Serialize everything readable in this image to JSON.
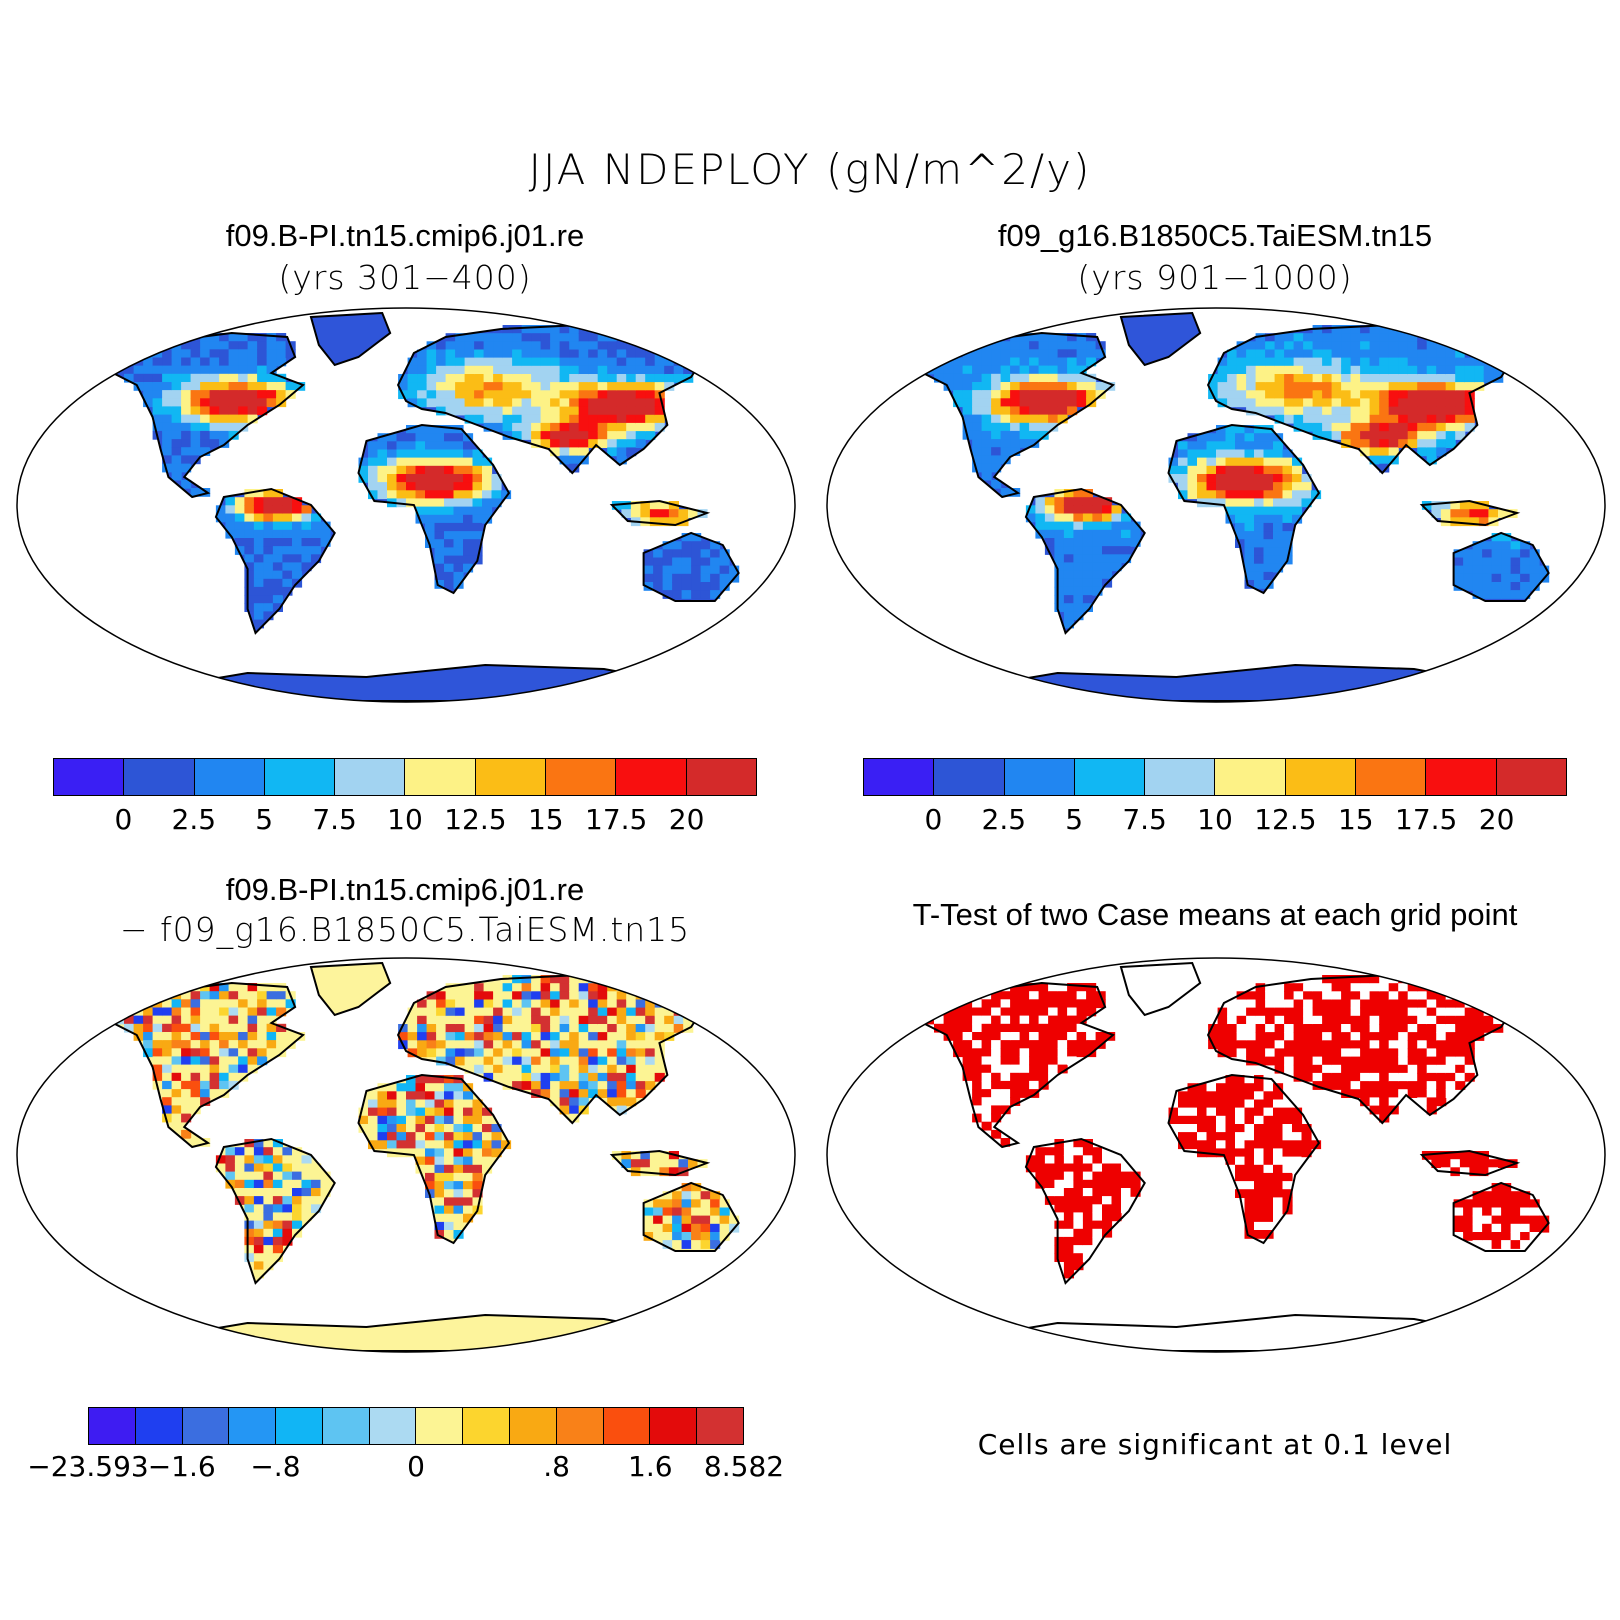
{
  "figure": {
    "title": "JJA NDEPLOY (gN/m^2/y)",
    "colors": {
      "land_low": "#2f55d9",
      "land_zero": "#fdf49c",
      "significant": "#ee0000",
      "map_border": "#000000"
    }
  },
  "panels": {
    "top_left": {
      "case_name": "f09.B-PI.tn15.cmip6.j01.re",
      "years": "(yrs 301−400)",
      "fill_map": "NDEPLOY mean, case 1"
    },
    "top_right": {
      "case_name": "f09_g16.B1850C5.TaiESM.tn15",
      "years": "(yrs 901−1000)",
      "fill_map": "NDEPLOY mean, case 2"
    },
    "bottom_left": {
      "line1": "f09.B-PI.tn15.cmip6.j01.re",
      "line2": "− f09_g16.B1850C5.TaiESM.tn15",
      "fill_map": "difference"
    },
    "bottom_right": {
      "title": "T-Test of two Case means at each grid point",
      "note": "Cells are significant at 0.1 level",
      "fill_map": "significance"
    }
  },
  "colorbars": {
    "mean": {
      "colors": [
        "#3a1ff4",
        "#2d55d6",
        "#2186f1",
        "#11b7f3",
        "#a2d3f1",
        "#fdf286",
        "#fbbd16",
        "#fa7512",
        "#f80f0f",
        "#d42a2a"
      ],
      "labels": [
        "0",
        "2.5",
        "5",
        "7.5",
        "10",
        "12.5",
        "15",
        "17.5",
        "20"
      ]
    },
    "diff": {
      "colors": [
        "#3e1cf2",
        "#1f3ff0",
        "#3b6ee0",
        "#2496f4",
        "#11b5f5",
        "#5ec4f2",
        "#acdaf2",
        "#fcf494",
        "#fcd52e",
        "#f9a913",
        "#f98118",
        "#fa4f0e",
        "#e30b0b",
        "#d33131"
      ],
      "labels": [
        "−23.593",
        "−1.6",
        "−.8",
        "0",
        ".8",
        "1.6",
        "8.582"
      ]
    }
  },
  "chart_data": {
    "type": "heatmap",
    "title": "JJA NDEPLOY (gN/m^2/y)",
    "panels": [
      {
        "title": "f09.B-PI.tn15.cmip6.j01.re",
        "subtitle": "(yrs 301−400)",
        "color_levels": [
          0,
          2.5,
          5,
          7.5,
          10,
          12.5,
          15,
          17.5,
          20
        ]
      },
      {
        "title": "f09_g16.B1850C5.TaiESM.tn15",
        "subtitle": "(yrs 901−1000)",
        "color_levels": [
          0,
          2.5,
          5,
          7.5,
          10,
          12.5,
          15,
          17.5,
          20
        ]
      },
      {
        "title": "f09.B-PI.tn15.cmip6.j01.re − f09_g16.B1850C5.TaiESM.tn15",
        "color_labels": [
          "−23.593",
          "−1.6",
          "−.8",
          "0",
          ".8",
          "1.6",
          "8.582"
        ]
      },
      {
        "title": "T-Test of two Case means at each grid point",
        "note": "Cells are significant at 0.1 level"
      }
    ]
  }
}
